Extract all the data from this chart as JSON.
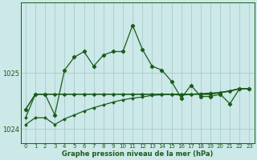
{
  "xlabel": "Graphe pression niveau de la mer (hPa)",
  "background_color": "#cce8e8",
  "grid_color": "#aacccc",
  "line_color": "#1a5c1a",
  "ylim": [
    1023.75,
    1026.25
  ],
  "xlim": [
    -0.5,
    23.5
  ],
  "yticks": [
    1024,
    1025
  ],
  "xticks": [
    0,
    1,
    2,
    3,
    4,
    5,
    6,
    7,
    8,
    9,
    10,
    11,
    12,
    13,
    14,
    15,
    16,
    17,
    18,
    19,
    20,
    21,
    22,
    23
  ],
  "main_line": [
    1024.35,
    1024.62,
    1024.62,
    1024.25,
    1025.05,
    1025.28,
    1025.38,
    1025.12,
    1025.32,
    1025.38,
    1025.38,
    1025.85,
    1025.42,
    1025.12,
    1025.05,
    1024.85,
    1024.55,
    1024.78,
    1024.58,
    1024.58,
    1024.62,
    1024.45,
    1024.72,
    1024.72
  ],
  "line2": [
    1024.35,
    1024.62,
    1024.62,
    1024.62,
    1024.62,
    1024.62,
    1024.62,
    1024.62,
    1024.62,
    1024.62,
    1024.62,
    1024.62,
    1024.62,
    1024.62,
    1024.62,
    1024.62,
    1024.62,
    1024.62,
    1024.62,
    1024.62,
    1024.65,
    1024.68,
    1024.72,
    1024.72
  ],
  "line3": [
    1024.2,
    1024.62,
    1024.62,
    1024.62,
    1024.62,
    1024.62,
    1024.62,
    1024.62,
    1024.62,
    1024.62,
    1024.62,
    1024.62,
    1024.62,
    1024.62,
    1024.62,
    1024.62,
    1024.62,
    1024.62,
    1024.62,
    1024.62,
    1024.65,
    1024.68,
    1024.72,
    1024.72
  ],
  "line4": [
    1024.08,
    1024.2,
    1024.2,
    1024.08,
    1024.18,
    1024.25,
    1024.32,
    1024.38,
    1024.43,
    1024.48,
    1024.52,
    1024.55,
    1024.57,
    1024.6,
    1024.61,
    1024.62,
    1024.6,
    1024.62,
    1024.63,
    1024.64,
    1024.65,
    1024.67,
    1024.72,
    1024.72
  ]
}
